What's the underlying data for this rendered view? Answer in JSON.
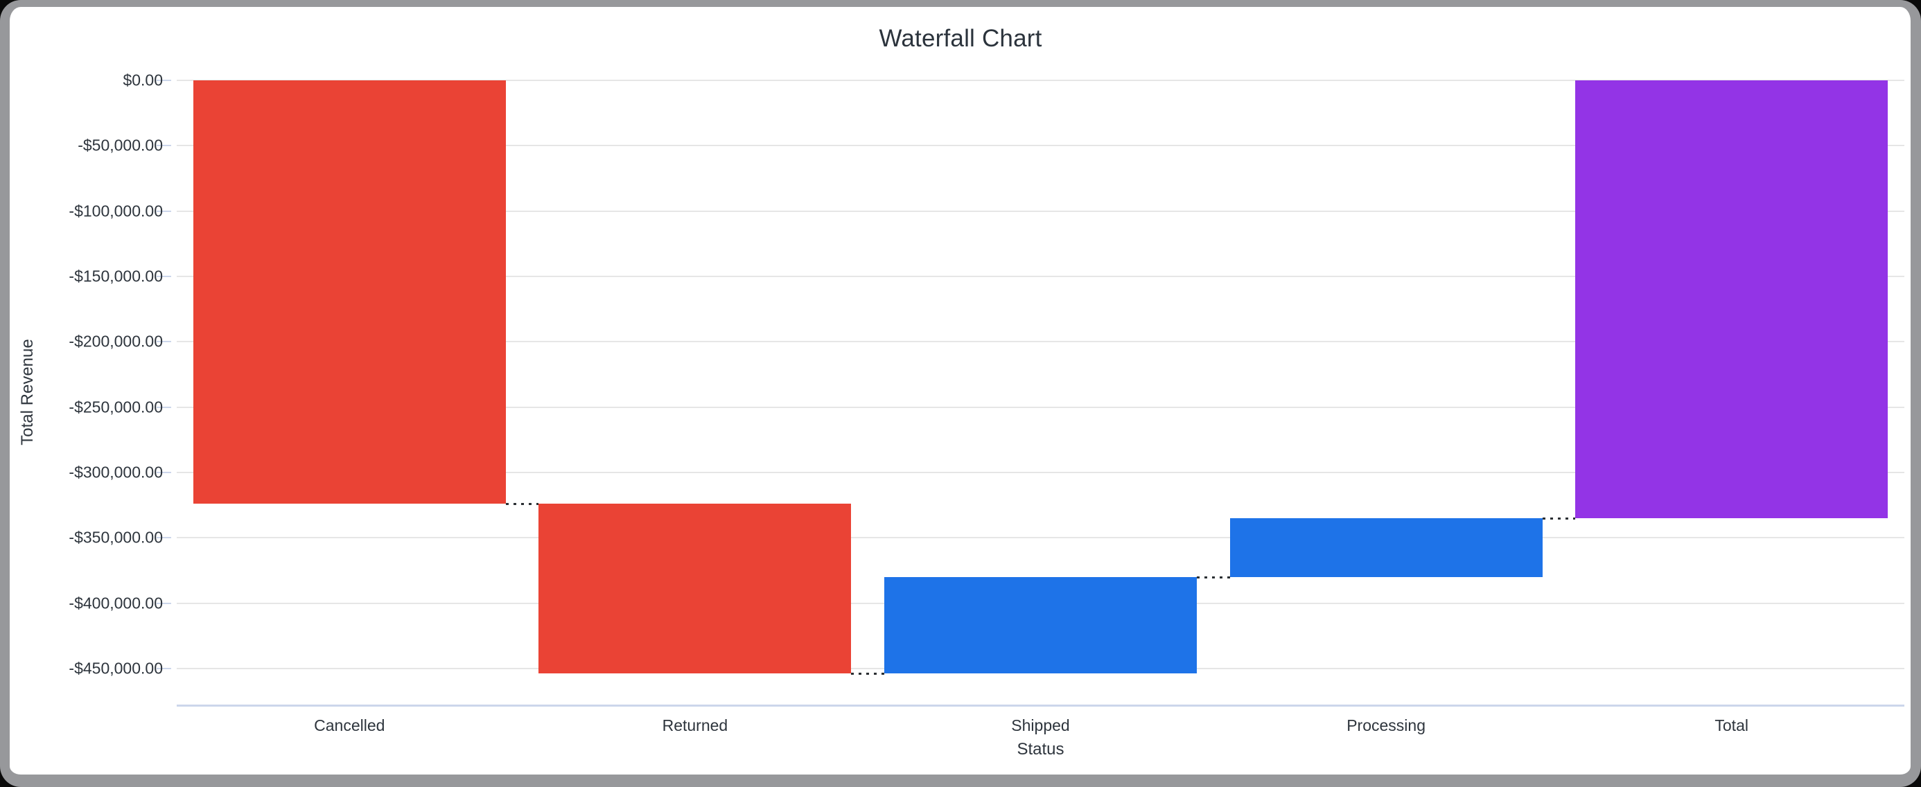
{
  "window": {
    "background_color": "#0a0a0a",
    "card_background": "#ffffff",
    "card_border_color": "#97989b"
  },
  "chart_data": {
    "type": "waterfall",
    "title": "Waterfall Chart",
    "xlabel": "Status",
    "ylabel": "Total Revenue",
    "categories": [
      "Cancelled",
      "Returned",
      "Shipped",
      "Processing",
      "Total"
    ],
    "series": [
      {
        "name": "Total Revenue",
        "values": [
          -323900,
          -129800,
          73700,
          45000,
          -335000
        ],
        "cumulative_start": [
          0,
          -323900,
          -453700,
          -380000,
          0
        ],
        "cumulative_end": [
          -323900,
          -453700,
          -380000,
          -335000,
          -335000
        ],
        "roles": [
          "decrease",
          "decrease",
          "increase",
          "increase",
          "total"
        ]
      }
    ],
    "colors": {
      "decrease": "#EA4335",
      "increase": "#1E73E8",
      "total": "#9334E6"
    },
    "y_ticks": [
      0,
      -50000,
      -100000,
      -150000,
      -200000,
      -250000,
      -300000,
      -350000,
      -400000,
      -450000
    ],
    "y_tick_labels": [
      "$0.00",
      "-$50,000.00",
      "-$100,000.00",
      "-$150,000.00",
      "-$200,000.00",
      "-$250,000.00",
      "-$300,000.00",
      "-$350,000.00",
      "-$400,000.00",
      "-$450,000.00"
    ],
    "ylim": [
      -477500,
      0
    ],
    "grid": true,
    "legend": "none",
    "connector_style": "dotted",
    "gridline_color": "#e6e6e6",
    "axis_line_color": "#ccd6eb",
    "tick_color": "#ccd6eb",
    "label_color": "#2e353d",
    "title_color": "#2b333c"
  }
}
